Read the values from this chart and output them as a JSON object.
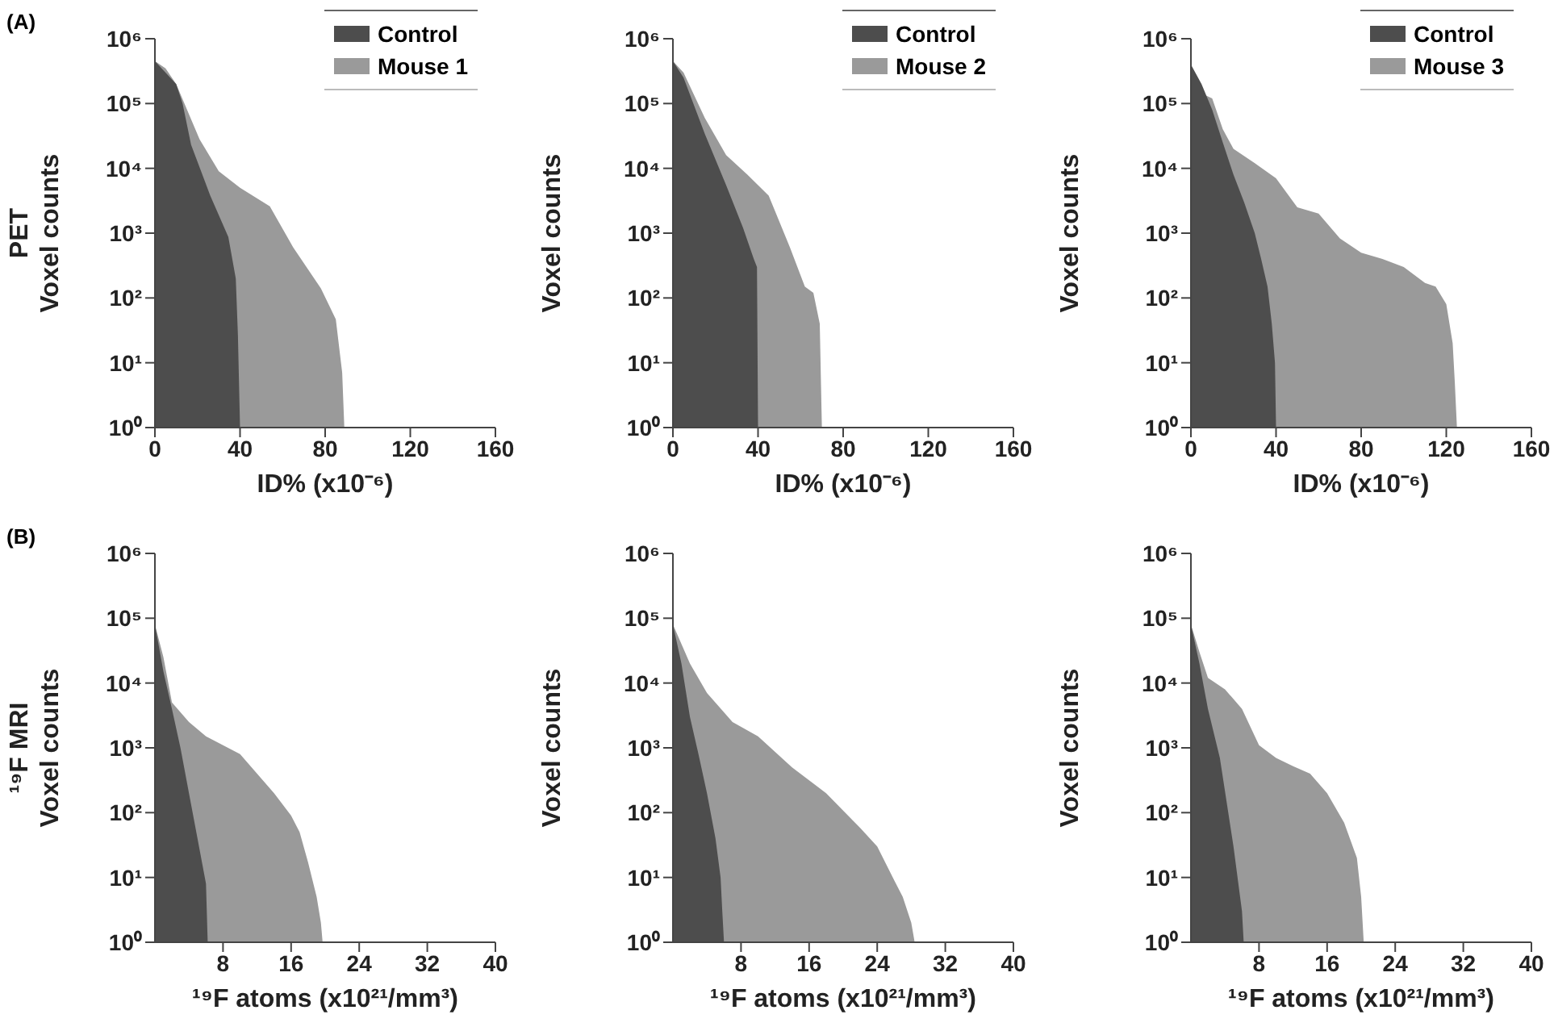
{
  "chart_data": [
    {
      "type": "area",
      "annotations": [
        "(A)"
      ],
      "xlabel": "ID% (x10⁻⁶)",
      "ylabel": "PET\nVoxel counts",
      "log": "y",
      "xlim": [
        0,
        160
      ],
      "xticks": [
        0,
        40,
        80,
        120,
        160
      ],
      "ylim": [
        1,
        1000000
      ],
      "yticks": [
        {
          "value": 1,
          "label": "10⁰"
        },
        {
          "value": 10,
          "label": "10¹"
        },
        {
          "value": 100,
          "label": "10²"
        },
        {
          "value": 1000,
          "label": "10³"
        },
        {
          "value": 10000,
          "label": "10⁴"
        },
        {
          "value": 100000,
          "label": "10⁵"
        },
        {
          "value": 1000000,
          "label": "10⁶"
        }
      ],
      "legend": "top right",
      "grid": false,
      "series": [
        {
          "name": "Control",
          "color": "#4d4d4d",
          "x": [
            0,
            10,
            13,
            17,
            26,
            34.5,
            38,
            39,
            40
          ],
          "values": [
            450000,
            200000,
            100000,
            23000,
            3800,
            870,
            200,
            27,
            1
          ]
        },
        {
          "name": "Mouse 1",
          "color": "#9a9a9a",
          "x": [
            0,
            5,
            10,
            21,
            30,
            40,
            54,
            65,
            78,
            85,
            88,
            89
          ],
          "values": [
            450000,
            350000,
            200000,
            28000,
            9000,
            5000,
            2600,
            600,
            140,
            47,
            7,
            1
          ]
        }
      ]
    },
    {
      "type": "area",
      "xlabel": "ID% (x10⁻⁶)",
      "ylabel": "Voxel counts",
      "log": "y",
      "xlim": [
        0,
        160
      ],
      "xticks": [
        0,
        40,
        80,
        120,
        160
      ],
      "ylim": [
        1,
        1000000
      ],
      "yticks": [
        {
          "value": 1,
          "label": "10⁰"
        },
        {
          "value": 10,
          "label": "10¹"
        },
        {
          "value": 100,
          "label": "10²"
        },
        {
          "value": 1000,
          "label": "10³"
        },
        {
          "value": 10000,
          "label": "10⁴"
        },
        {
          "value": 100000,
          "label": "10⁵"
        },
        {
          "value": 1000000,
          "label": "10⁶"
        }
      ],
      "legend": "top right",
      "grid": false,
      "series": [
        {
          "name": "Control",
          "color": "#4d4d4d",
          "x": [
            0,
            5,
            15,
            25,
            33,
            38,
            39.5,
            40
          ],
          "values": [
            450000,
            250000,
            34000,
            5500,
            1200,
            400,
            300,
            1
          ]
        },
        {
          "name": "Mouse 2",
          "color": "#9a9a9a",
          "x": [
            0,
            5,
            15,
            25,
            35,
            45,
            55,
            62,
            66,
            69,
            70
          ],
          "values": [
            450000,
            300000,
            60000,
            16000,
            8000,
            3800,
            600,
            150,
            120,
            40,
            1
          ]
        }
      ]
    },
    {
      "type": "area",
      "xlabel": "ID% (x10⁻⁶)",
      "ylabel": "Voxel counts",
      "log": "y",
      "xlim": [
        0,
        160
      ],
      "xticks": [
        0,
        40,
        80,
        120,
        160
      ],
      "ylim": [
        1,
        1000000
      ],
      "yticks": [
        {
          "value": 1,
          "label": "10⁰"
        },
        {
          "value": 10,
          "label": "10¹"
        },
        {
          "value": 100,
          "label": "10²"
        },
        {
          "value": 1000,
          "label": "10³"
        },
        {
          "value": 10000,
          "label": "10⁴"
        },
        {
          "value": 100000,
          "label": "10⁵"
        },
        {
          "value": 1000000,
          "label": "10⁶"
        }
      ],
      "legend": "top right",
      "grid": false,
      "series": [
        {
          "name": "Control",
          "color": "#4d4d4d",
          "x": [
            0,
            5,
            10,
            15,
            20,
            25,
            30,
            33,
            36,
            38,
            39.5,
            40
          ],
          "values": [
            400000,
            200000,
            80000,
            25000,
            8000,
            3000,
            1000,
            400,
            150,
            40,
            10,
            1
          ]
        },
        {
          "name": "Mouse 3",
          "color": "#9a9a9a",
          "x": [
            0,
            10,
            15,
            20,
            30,
            40,
            50,
            60,
            70,
            80,
            90,
            100,
            110,
            115,
            120,
            123,
            124,
            125
          ],
          "values": [
            170000,
            120000,
            40000,
            20000,
            12000,
            7000,
            2500,
            2000,
            830,
            500,
            400,
            300,
            170,
            150,
            80,
            20,
            5,
            1
          ]
        }
      ]
    },
    {
      "type": "area",
      "annotations": [
        "(B)"
      ],
      "xlabel": "¹⁹F atoms (x10²¹/mm³)",
      "ylabel": "¹⁹F MRI\nVoxel counts",
      "log": "y",
      "xlim": [
        0,
        40
      ],
      "xticks": [
        8,
        16,
        24,
        32,
        40
      ],
      "ylim": [
        1,
        1000000
      ],
      "yticks": [
        {
          "value": 1,
          "label": "10⁰"
        },
        {
          "value": 10,
          "label": "10¹"
        },
        {
          "value": 100,
          "label": "10²"
        },
        {
          "value": 1000,
          "label": "10³"
        },
        {
          "value": 10000,
          "label": "10⁴"
        },
        {
          "value": 100000,
          "label": "10⁵"
        },
        {
          "value": 1000000,
          "label": "10⁶"
        }
      ],
      "grid": false,
      "series": [
        {
          "color": "#4d4d4d",
          "x": [
            0,
            1,
            2,
            3,
            4,
            5,
            6,
            6.2
          ],
          "values": [
            80000,
            15000,
            4000,
            1000,
            200,
            40,
            8,
            1
          ]
        },
        {
          "color": "#9a9a9a",
          "x": [
            0,
            1,
            2,
            4,
            6,
            8,
            10,
            12,
            14,
            16,
            17,
            18,
            19,
            19.5,
            19.7
          ],
          "values": [
            80000,
            25000,
            5000,
            2500,
            1500,
            1100,
            800,
            400,
            200,
            90,
            50,
            17,
            5,
            2,
            1
          ]
        }
      ]
    },
    {
      "type": "area",
      "xlabel": "¹⁹F atoms (x10²¹/mm³)",
      "ylabel": "Voxel counts",
      "log": "y",
      "xlim": [
        0,
        40
      ],
      "xticks": [
        8,
        16,
        24,
        32,
        40
      ],
      "ylim": [
        1,
        1000000
      ],
      "yticks": [
        {
          "value": 1,
          "label": "10⁰"
        },
        {
          "value": 10,
          "label": "10¹"
        },
        {
          "value": 100,
          "label": "10²"
        },
        {
          "value": 1000,
          "label": "10³"
        },
        {
          "value": 10000,
          "label": "10⁴"
        },
        {
          "value": 100000,
          "label": "10⁵"
        },
        {
          "value": 1000000,
          "label": "10⁶"
        }
      ],
      "grid": false,
      "series": [
        {
          "color": "#4d4d4d",
          "x": [
            0,
            1,
            2,
            3,
            4,
            5,
            5.6,
            5.8,
            6
          ],
          "values": [
            80000,
            20000,
            3000,
            800,
            200,
            40,
            10,
            3,
            1
          ]
        },
        {
          "color": "#9a9a9a",
          "x": [
            0,
            2,
            4,
            7,
            10,
            14,
            18,
            22,
            24,
            26,
            27,
            28,
            28.4
          ],
          "values": [
            80000,
            20000,
            7000,
            2500,
            1500,
            500,
            200,
            58,
            30,
            9,
            5,
            2,
            1
          ]
        }
      ]
    },
    {
      "type": "area",
      "xlabel": "¹⁹F atoms (x10²¹/mm³)",
      "ylabel": "Voxel counts",
      "log": "y",
      "xlim": [
        0,
        40
      ],
      "xticks": [
        8,
        16,
        24,
        32,
        40
      ],
      "ylim": [
        1,
        1000000
      ],
      "yticks": [
        {
          "value": 1,
          "label": "10⁰"
        },
        {
          "value": 10,
          "label": "10¹"
        },
        {
          "value": 100,
          "label": "10²"
        },
        {
          "value": 1000,
          "label": "10³"
        },
        {
          "value": 10000,
          "label": "10⁴"
        },
        {
          "value": 100000,
          "label": "10⁵"
        },
        {
          "value": 1000000,
          "label": "10⁶"
        }
      ],
      "grid": false,
      "series": [
        {
          "color": "#4d4d4d",
          "x": [
            0,
            1,
            2,
            3.4,
            5,
            6,
            6.2
          ],
          "values": [
            80000,
            20000,
            4000,
            700,
            30,
            3,
            1
          ]
        },
        {
          "color": "#9a9a9a",
          "x": [
            0,
            1,
            2,
            4,
            6,
            8,
            10,
            12,
            14,
            16,
            18,
            19.5,
            20,
            20.3
          ],
          "values": [
            80000,
            30000,
            12000,
            8000,
            4000,
            1100,
            700,
            520,
            400,
            200,
            70,
            20,
            5,
            1
          ]
        }
      ]
    }
  ]
}
